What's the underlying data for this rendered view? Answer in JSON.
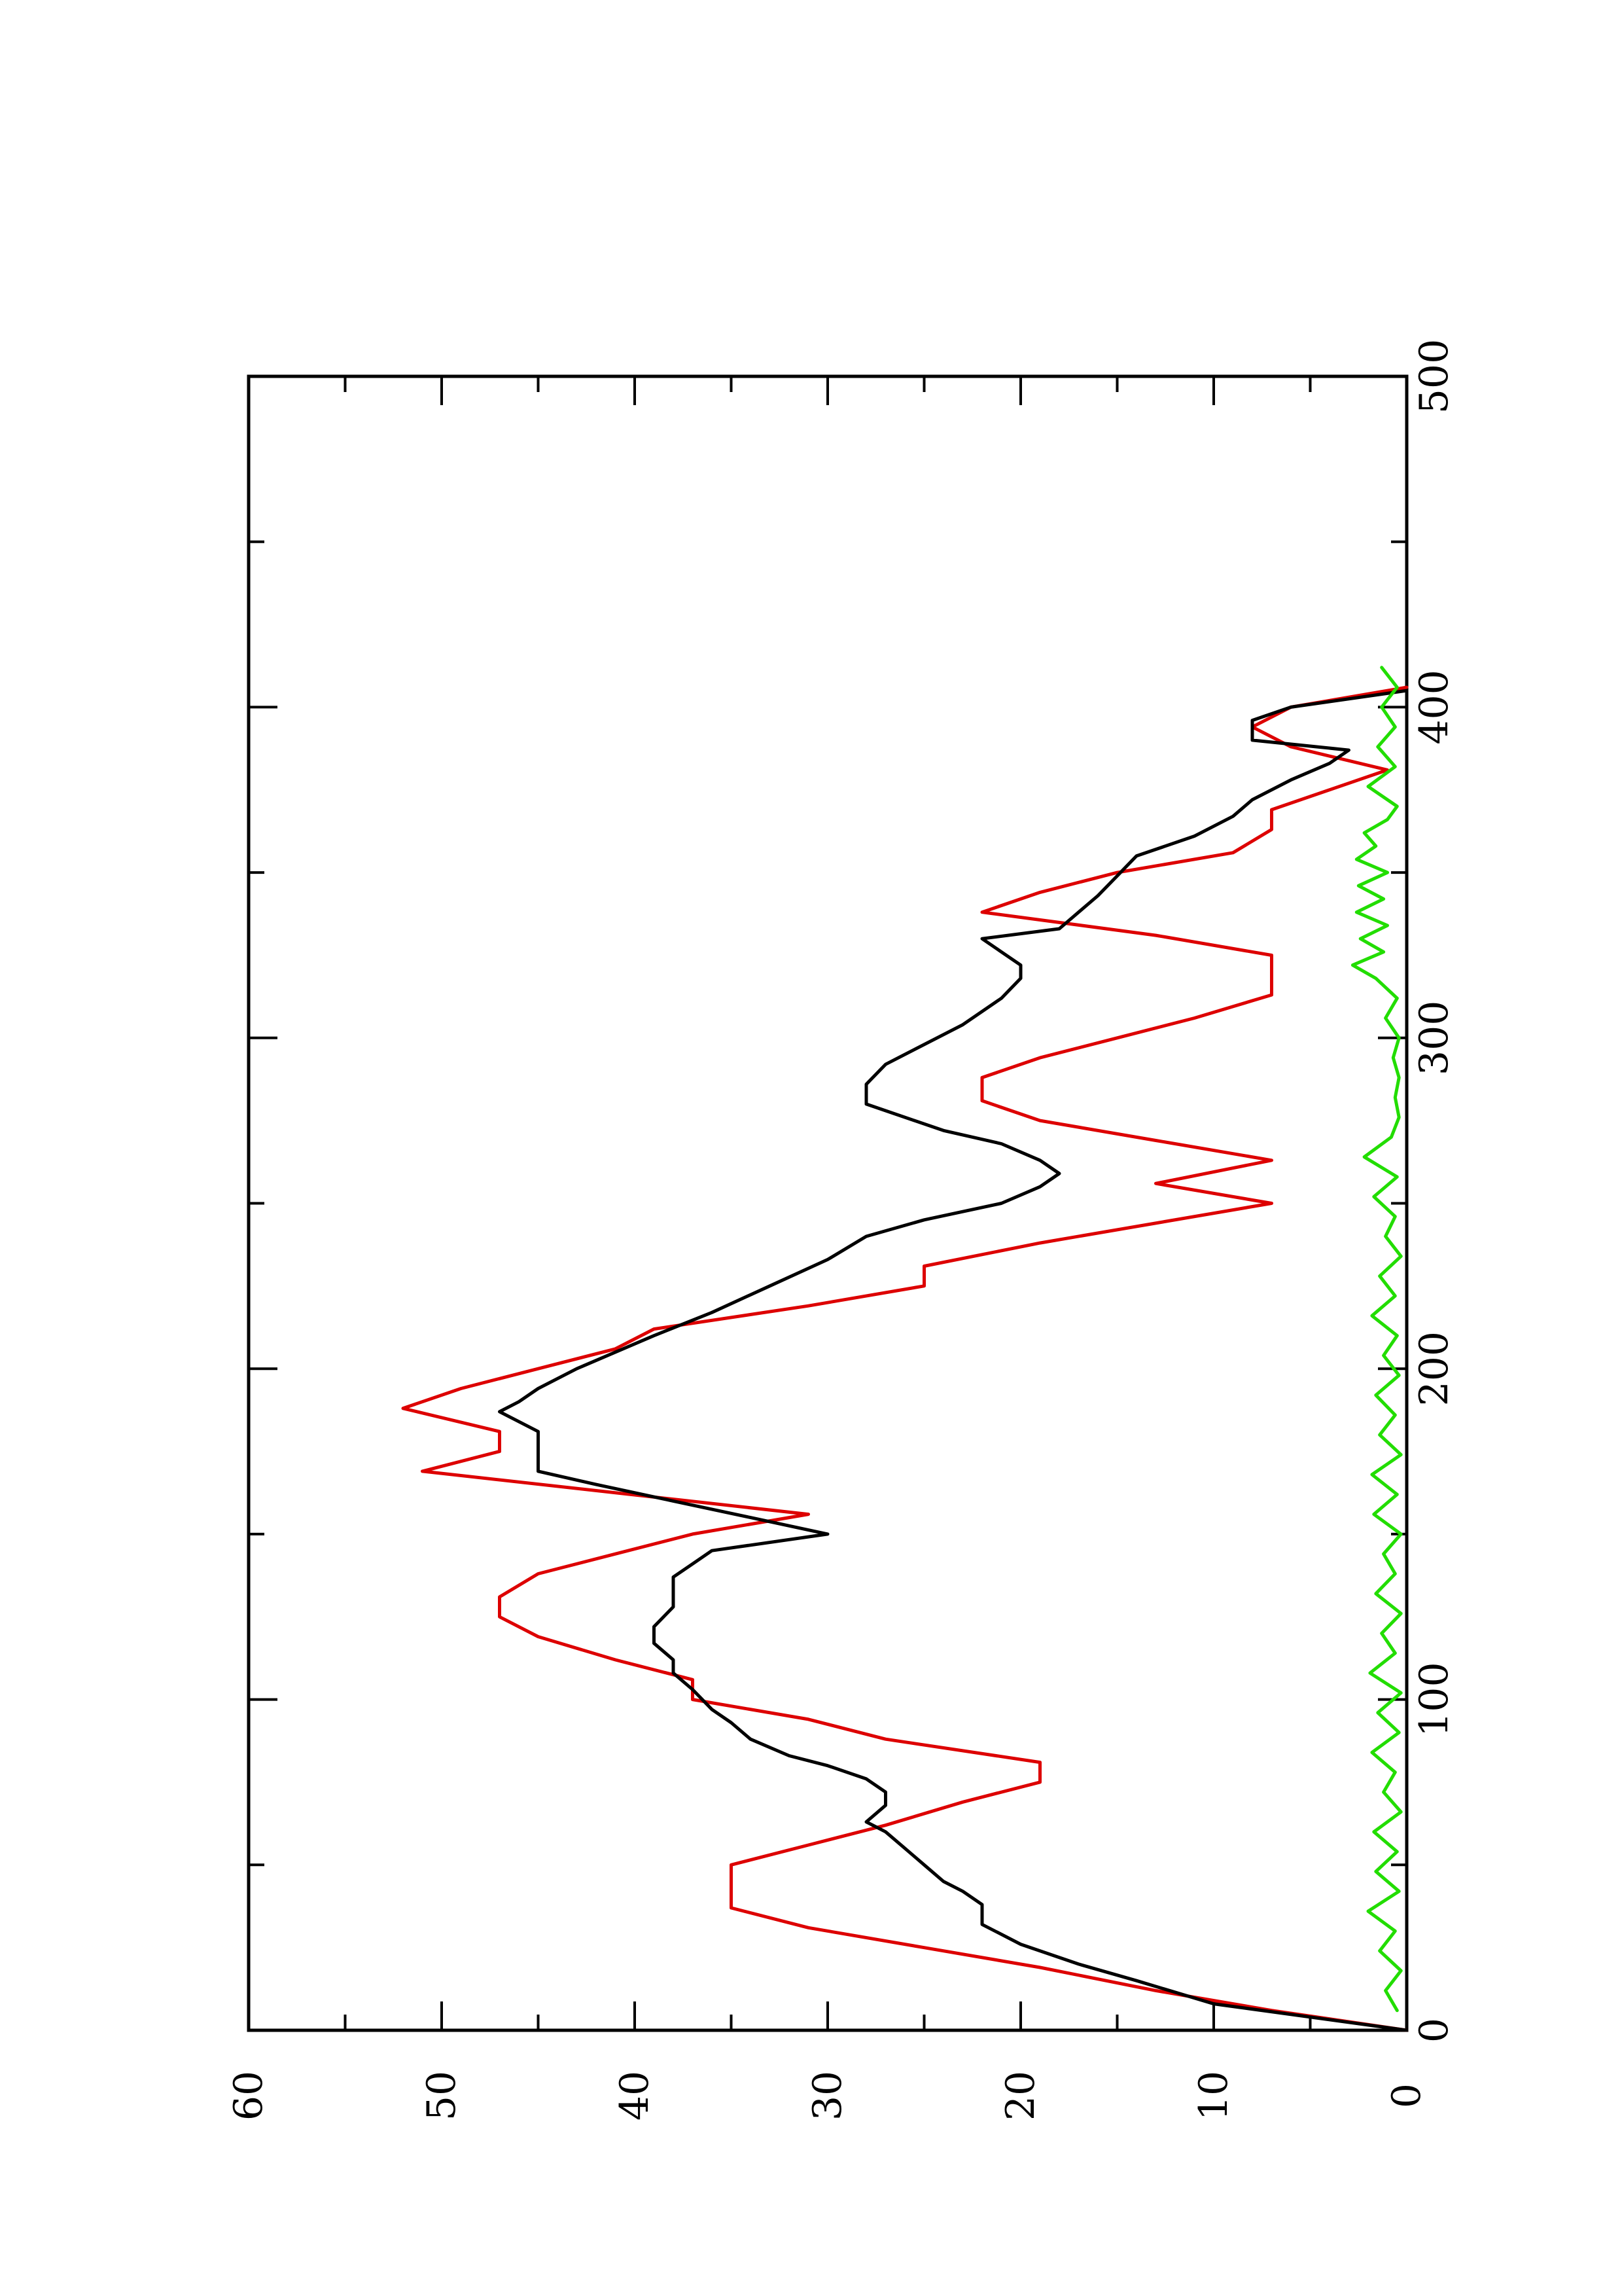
{
  "chart_data": {
    "type": "line",
    "orientation": "rotated-90-ccw",
    "title": "",
    "xlabel": "",
    "ylabel": "",
    "xlim": [
      0,
      500
    ],
    "ylim": [
      0,
      60
    ],
    "x_ticks": [
      "0",
      "100",
      "200",
      "300",
      "400",
      "500"
    ],
    "y_ticks": [
      "0",
      "10",
      "20",
      "30",
      "40",
      "50",
      "60"
    ],
    "grid": false,
    "legend": "none",
    "series": [
      {
        "color": "#dd0000",
        "points": [
          [
            0,
            0
          ],
          [
            6,
            7
          ],
          [
            12,
            13
          ],
          [
            19,
            19
          ],
          [
            25,
            25
          ],
          [
            31,
            31
          ],
          [
            37,
            35
          ],
          [
            50,
            35
          ],
          [
            56,
            31
          ],
          [
            62,
            27
          ],
          [
            69,
            23
          ],
          [
            75,
            19
          ],
          [
            81,
            19
          ],
          [
            88,
            27
          ],
          [
            94,
            31
          ],
          [
            100,
            37
          ],
          [
            106,
            37
          ],
          [
            112,
            41
          ],
          [
            119,
            45
          ],
          [
            125,
            47
          ],
          [
            131,
            47
          ],
          [
            138,
            45
          ],
          [
            144,
            41
          ],
          [
            150,
            37
          ],
          [
            156,
            31
          ],
          [
            169,
            51
          ],
          [
            175,
            47
          ],
          [
            181,
            47
          ],
          [
            188,
            52
          ],
          [
            194,
            49
          ],
          [
            200,
            45
          ],
          [
            206,
            41
          ],
          [
            212,
            39
          ],
          [
            219,
            31
          ],
          [
            225,
            25
          ],
          [
            231,
            25
          ],
          [
            238,
            19
          ],
          [
            250,
            7
          ],
          [
            256,
            13
          ],
          [
            263,
            7
          ],
          [
            269,
            13
          ],
          [
            275,
            19
          ],
          [
            281,
            22
          ],
          [
            288,
            22
          ],
          [
            294,
            19
          ],
          [
            300,
            15
          ],
          [
            306,
            11
          ],
          [
            313,
            7
          ],
          [
            325,
            7
          ],
          [
            331,
            13
          ],
          [
            338,
            22
          ],
          [
            344,
            19
          ],
          [
            350,
            15
          ],
          [
            356,
            9
          ],
          [
            363,
            7
          ],
          [
            369,
            7
          ],
          [
            375,
            4
          ],
          [
            381,
            1
          ],
          [
            388,
            6
          ],
          [
            394,
            8
          ],
          [
            400,
            6
          ],
          [
            406,
            0
          ]
        ]
      },
      {
        "color": "#000000",
        "points": [
          [
            0,
            0
          ],
          [
            8,
            10
          ],
          [
            15,
            14
          ],
          [
            20,
            17
          ],
          [
            26,
            20
          ],
          [
            32,
            22
          ],
          [
            38,
            22
          ],
          [
            42,
            23
          ],
          [
            45,
            24
          ],
          [
            50,
            25
          ],
          [
            55,
            26
          ],
          [
            60,
            27
          ],
          [
            63,
            28
          ],
          [
            68,
            27
          ],
          [
            72,
            27
          ],
          [
            76,
            28
          ],
          [
            80,
            30
          ],
          [
            83,
            32
          ],
          [
            88,
            34
          ],
          [
            93,
            35
          ],
          [
            97,
            36
          ],
          [
            103,
            37
          ],
          [
            108,
            38
          ],
          [
            112,
            38
          ],
          [
            117,
            39
          ],
          [
            122,
            39
          ],
          [
            128,
            38
          ],
          [
            133,
            38
          ],
          [
            137,
            38
          ],
          [
            141,
            37
          ],
          [
            145,
            36
          ],
          [
            150,
            30
          ],
          [
            155,
            34
          ],
          [
            160,
            38
          ],
          [
            165,
            42
          ],
          [
            169,
            45
          ],
          [
            175,
            45
          ],
          [
            181,
            45
          ],
          [
            187,
            47
          ],
          [
            190,
            46
          ],
          [
            194,
            45
          ],
          [
            200,
            43
          ],
          [
            205,
            41
          ],
          [
            210,
            39
          ],
          [
            217,
            36
          ],
          [
            225,
            33
          ],
          [
            233,
            30
          ],
          [
            240,
            28
          ],
          [
            245,
            25
          ],
          [
            250,
            21
          ],
          [
            255,
            19
          ],
          [
            259,
            18
          ],
          [
            263,
            19
          ],
          [
            268,
            21
          ],
          [
            272,
            24
          ],
          [
            280,
            28
          ],
          [
            286,
            28
          ],
          [
            292,
            27
          ],
          [
            298,
            25
          ],
          [
            304,
            23
          ],
          [
            312,
            21
          ],
          [
            318,
            20
          ],
          [
            322,
            20
          ],
          [
            326,
            21
          ],
          [
            330,
            22
          ],
          [
            333,
            18
          ],
          [
            338,
            17
          ],
          [
            343,
            16
          ],
          [
            349,
            15
          ],
          [
            355,
            14
          ],
          [
            361,
            11
          ],
          [
            367,
            9
          ],
          [
            372,
            8
          ],
          [
            378,
            6
          ],
          [
            383,
            4
          ],
          [
            387,
            3
          ],
          [
            390,
            8
          ],
          [
            396,
            8
          ],
          [
            400,
            6
          ],
          [
            405,
            0
          ]
        ]
      },
      {
        "color": "#22dd00",
        "points": [
          [
            6,
            0.5
          ],
          [
            12,
            1.1
          ],
          [
            18,
            0.3
          ],
          [
            24,
            1.4
          ],
          [
            30,
            0.6
          ],
          [
            36,
            2.0
          ],
          [
            42,
            0.4
          ],
          [
            48,
            1.6
          ],
          [
            54,
            0.5
          ],
          [
            60,
            1.7
          ],
          [
            66,
            0.3
          ],
          [
            72,
            1.2
          ],
          [
            78,
            0.6
          ],
          [
            84,
            1.8
          ],
          [
            90,
            0.4
          ],
          [
            96,
            1.5
          ],
          [
            102,
            0.3
          ],
          [
            108,
            1.9
          ],
          [
            114,
            0.6
          ],
          [
            120,
            1.3
          ],
          [
            126,
            0.3
          ],
          [
            132,
            1.6
          ],
          [
            138,
            0.6
          ],
          [
            144,
            1.2
          ],
          [
            150,
            0.3
          ],
          [
            156,
            1.7
          ],
          [
            162,
            0.5
          ],
          [
            168,
            1.8
          ],
          [
            174,
            0.3
          ],
          [
            180,
            1.4
          ],
          [
            186,
            0.6
          ],
          [
            192,
            1.6
          ],
          [
            198,
            0.4
          ],
          [
            204,
            1.2
          ],
          [
            210,
            0.5
          ],
          [
            216,
            1.8
          ],
          [
            222,
            0.6
          ],
          [
            228,
            1.4
          ],
          [
            234,
            0.3
          ],
          [
            240,
            1.1
          ],
          [
            246,
            0.6
          ],
          [
            252,
            1.7
          ],
          [
            258,
            0.5
          ],
          [
            264,
            2.2
          ],
          [
            270,
            0.8
          ],
          [
            276,
            0.4
          ],
          [
            282,
            0.6
          ],
          [
            288,
            0.4
          ],
          [
            294,
            0.7
          ],
          [
            300,
            0.4
          ],
          [
            306,
            1.1
          ],
          [
            312,
            0.5
          ],
          [
            318,
            1.6
          ],
          [
            322,
            2.8
          ],
          [
            326,
            1.2
          ],
          [
            330,
            2.4
          ],
          [
            334,
            1.0
          ],
          [
            338,
            2.6
          ],
          [
            342,
            1.2
          ],
          [
            346,
            2.5
          ],
          [
            350,
            1.0
          ],
          [
            354,
            2.6
          ],
          [
            358,
            1.6
          ],
          [
            362,
            2.2
          ],
          [
            366,
            1.0
          ],
          [
            370,
            0.5
          ],
          [
            376,
            2.0
          ],
          [
            382,
            0.6
          ],
          [
            388,
            1.5
          ],
          [
            394,
            0.6
          ],
          [
            400,
            1.3
          ],
          [
            406,
            0.5
          ],
          [
            412,
            1.3
          ]
        ]
      }
    ]
  }
}
